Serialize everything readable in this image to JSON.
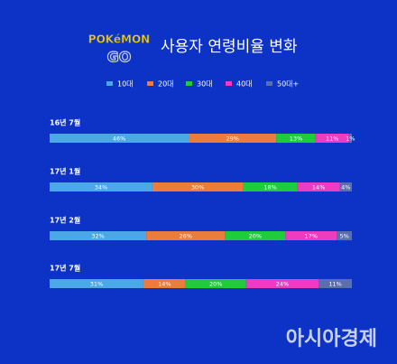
{
  "chart_data": {
    "type": "stacked-bar",
    "logo_top": "POKéMON",
    "logo_bottom": "GO",
    "title": "사용자 연령비율 변화",
    "categories": [
      "16년 7월",
      "17년 1월",
      "17년 2월",
      "17년 7월"
    ],
    "series": [
      {
        "name": "10대",
        "color": "#4aa8e6",
        "values": [
          46,
          34,
          32,
          31
        ],
        "value_labels": [
          "46%",
          "34%",
          "32%",
          "31%"
        ]
      },
      {
        "name": "20대",
        "color": "#ea7d3c",
        "values": [
          29,
          30,
          26,
          14
        ],
        "value_labels": [
          "29%",
          "30%",
          "26%",
          "14%"
        ]
      },
      {
        "name": "30대",
        "color": "#1fcc3c",
        "values": [
          13,
          18,
          20,
          20
        ],
        "value_labels": [
          "13%",
          "18%",
          "20%",
          "20%"
        ]
      },
      {
        "name": "40대",
        "color": "#ec3cc0",
        "values": [
          11,
          14,
          17,
          24
        ],
        "value_labels": [
          "11%",
          "14%",
          "17%",
          "24%"
        ]
      },
      {
        "name": "50대+",
        "color": "#5b70aa",
        "values": [
          1,
          4,
          5,
          11
        ],
        "value_labels": [
          "1%",
          "4%",
          "5%",
          "11%"
        ]
      }
    ],
    "legend": "top",
    "source": "아시아경제"
  }
}
